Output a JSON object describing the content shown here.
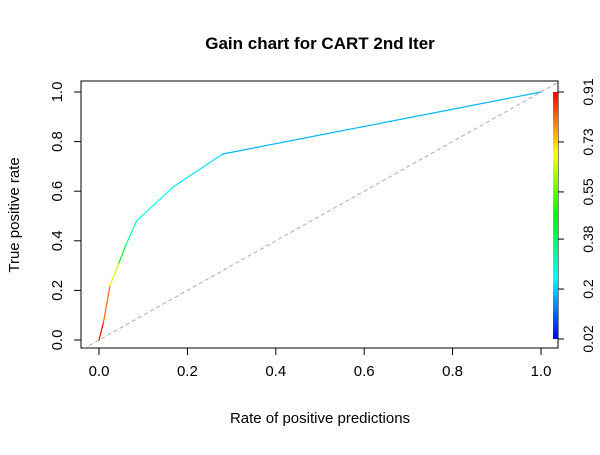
{
  "chart_data": {
    "type": "line",
    "title": "Gain chart for CART 2nd Iter",
    "xlabel": "Rate of positive predictions",
    "ylabel": "True positive rate",
    "xlim": [
      0,
      1
    ],
    "ylim": [
      0,
      1
    ],
    "grid": false,
    "x_ticks": [
      "0.0",
      "0.2",
      "0.4",
      "0.6",
      "0.8",
      "1.0"
    ],
    "y_ticks": [
      "0.0",
      "0.2",
      "0.4",
      "0.6",
      "0.8",
      "1.0"
    ],
    "series": [
      {
        "kind": "gain-curve",
        "points": [
          {
            "x": 0.0,
            "y": 0.0,
            "cutoff": 0.91
          },
          {
            "x": 0.01,
            "y": 0.07,
            "cutoff": 0.82
          },
          {
            "x": 0.025,
            "y": 0.22,
            "cutoff": 0.65
          },
          {
            "x": 0.045,
            "y": 0.31,
            "cutoff": 0.45
          },
          {
            "x": 0.06,
            "y": 0.38,
            "cutoff": 0.32
          },
          {
            "x": 0.085,
            "y": 0.48,
            "cutoff": 0.25
          },
          {
            "x": 0.17,
            "y": 0.62,
            "cutoff": 0.22
          },
          {
            "x": 0.28,
            "y": 0.75,
            "cutoff": 0.18
          },
          {
            "x": 1.0,
            "y": 1.0,
            "cutoff": 0.02
          }
        ]
      },
      {
        "kind": "reference-diagonal",
        "points": [
          {
            "x": -0.05,
            "y": -0.05
          },
          {
            "x": 1.05,
            "y": 1.05
          }
        ],
        "color": "#aaaaaa",
        "dashed": true
      }
    ],
    "colorbar": {
      "orientation": "vertical",
      "position": "right",
      "range": [
        0.02,
        0.91
      ],
      "tick_labels": [
        "0.02",
        "0.2",
        "0.38",
        "0.55",
        "0.73",
        "0.91"
      ],
      "tick_values": [
        0.02,
        0.2,
        0.38,
        0.55,
        0.73,
        0.91
      ],
      "palette": "rainbow",
      "colors": [
        "#0000ff",
        "#00ffff",
        "#00ff00",
        "#ffff00",
        "#ff0000"
      ]
    }
  }
}
